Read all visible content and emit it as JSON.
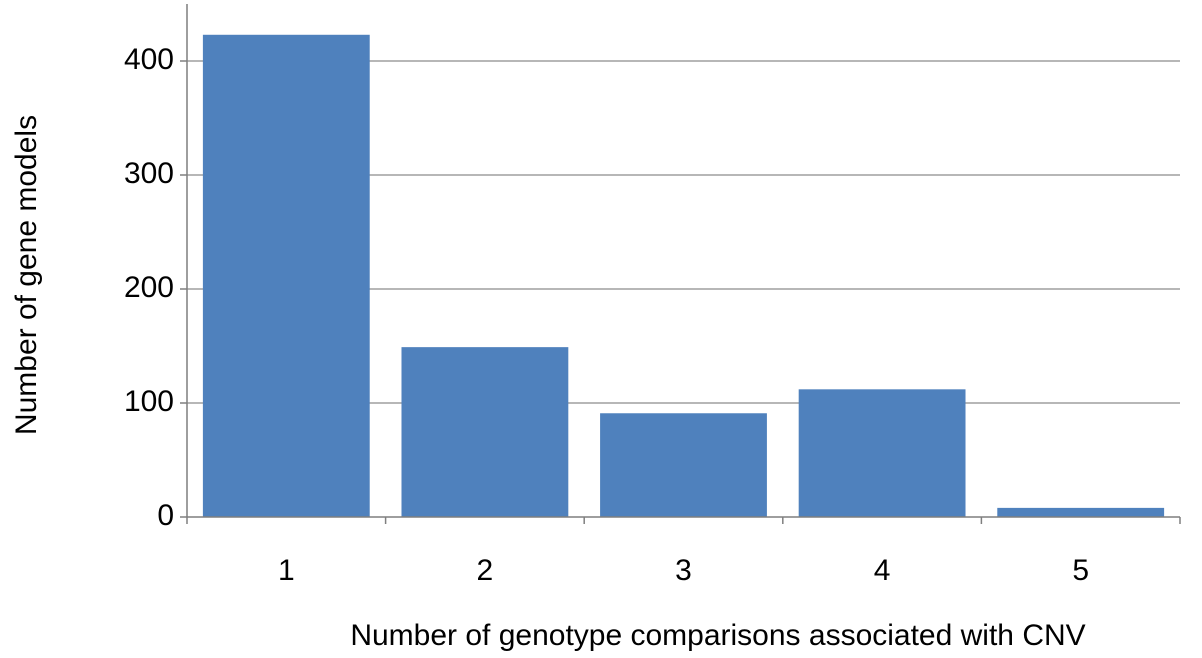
{
  "chart_data": {
    "type": "bar",
    "x_label": "Number of genotype comparisons associated with CNV",
    "y_label": "Number of gene models",
    "categories": [
      "1",
      "2",
      "3",
      "4",
      "5"
    ],
    "values": [
      423,
      149,
      91,
      112,
      8
    ],
    "color": "#4f81bd",
    "ylim": [
      0,
      450
    ],
    "yticks": [
      0,
      100,
      200,
      300,
      400
    ],
    "grid": true
  }
}
